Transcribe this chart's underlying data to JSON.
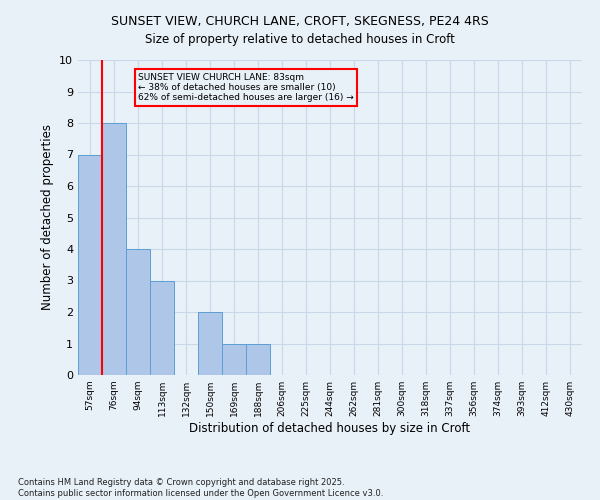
{
  "title_line1": "SUNSET VIEW, CHURCH LANE, CROFT, SKEGNESS, PE24 4RS",
  "title_line2": "Size of property relative to detached houses in Croft",
  "xlabel": "Distribution of detached houses by size in Croft",
  "ylabel": "Number of detached properties",
  "categories": [
    "57sqm",
    "76sqm",
    "94sqm",
    "113sqm",
    "132sqm",
    "150sqm",
    "169sqm",
    "188sqm",
    "206sqm",
    "225sqm",
    "244sqm",
    "262sqm",
    "281sqm",
    "300sqm",
    "318sqm",
    "337sqm",
    "356sqm",
    "374sqm",
    "393sqm",
    "412sqm",
    "430sqm"
  ],
  "values": [
    7,
    8,
    4,
    3,
    0,
    2,
    1,
    1,
    0,
    0,
    0,
    0,
    0,
    0,
    0,
    0,
    0,
    0,
    0,
    0,
    0
  ],
  "bar_color": "#aec6e8",
  "bar_edge_color": "#5a9fd4",
  "vline_x_index": 1,
  "vline_color": "red",
  "annotation_text": "SUNSET VIEW CHURCH LANE: 83sqm\n← 38% of detached houses are smaller (10)\n62% of semi-detached houses are larger (16) →",
  "annotation_box_color": "red",
  "annotation_text_color": "black",
  "annotation_fontsize": 6.5,
  "ylim": [
    0,
    10
  ],
  "yticks": [
    0,
    1,
    2,
    3,
    4,
    5,
    6,
    7,
    8,
    9,
    10
  ],
  "grid_color": "#c8d8e8",
  "background_color": "#e8f0f8",
  "footnote": "Contains HM Land Registry data © Crown copyright and database right 2025.\nContains public sector information licensed under the Open Government Licence v3.0."
}
